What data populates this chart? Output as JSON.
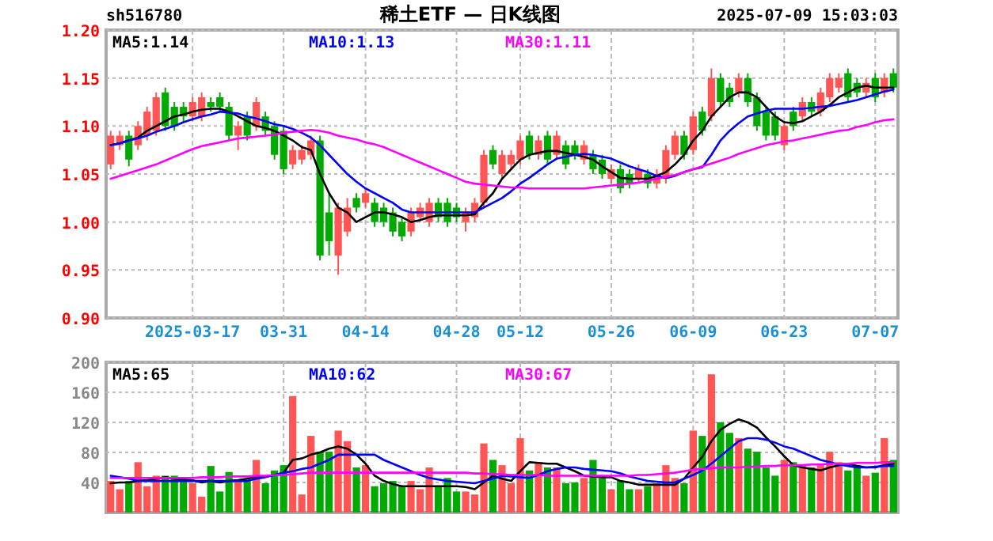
{
  "chart_data": [
    {
      "type": "candlestick",
      "title": "稀土ETF — 日K线图",
      "annotations": [
        "sh516780",
        "2025-07-09 15:03:03"
      ],
      "categories": [
        null,
        null,
        null,
        null,
        null,
        null,
        null,
        null,
        null,
        "2025-03-17",
        null,
        null,
        null,
        null,
        null,
        null,
        null,
        null,
        null,
        "03-31",
        null,
        null,
        null,
        null,
        null,
        null,
        null,
        null,
        "04-14",
        null,
        null,
        null,
        null,
        null,
        null,
        null,
        null,
        null,
        "04-28",
        null,
        null,
        null,
        null,
        null,
        null,
        "05-12",
        null,
        null,
        null,
        null,
        null,
        null,
        null,
        null,
        null,
        "05-26",
        null,
        null,
        null,
        null,
        null,
        null,
        null,
        null,
        "06-09",
        null,
        null,
        null,
        null,
        null,
        null,
        null,
        null,
        null,
        "06-23",
        null,
        null,
        null,
        null,
        null,
        null,
        null,
        null,
        null,
        "07-07",
        null,
        null
      ],
      "ohlc": [
        [
          1.06,
          1.095,
          1.055,
          1.09
        ],
        [
          1.08,
          1.095,
          1.075,
          1.09
        ],
        [
          1.09,
          1.095,
          1.058,
          1.065
        ],
        [
          1.08,
          1.105,
          1.075,
          1.1
        ],
        [
          1.09,
          1.12,
          1.085,
          1.115
        ],
        [
          1.095,
          1.135,
          1.09,
          1.13
        ],
        [
          1.135,
          1.14,
          1.095,
          1.1
        ],
        [
          1.12,
          1.125,
          1.095,
          1.1
        ],
        [
          1.12,
          1.125,
          1.105,
          1.11
        ],
        [
          1.11,
          1.13,
          1.105,
          1.125
        ],
        [
          1.11,
          1.135,
          1.105,
          1.13
        ],
        [
          1.125,
          1.13,
          1.115,
          1.12
        ],
        [
          1.13,
          1.135,
          1.115,
          1.12
        ],
        [
          1.12,
          1.125,
          1.085,
          1.09
        ],
        [
          1.09,
          1.105,
          1.075,
          1.1
        ],
        [
          1.11,
          1.115,
          1.085,
          1.09
        ],
        [
          1.1,
          1.13,
          1.095,
          1.125
        ],
        [
          1.11,
          1.115,
          1.09,
          1.095
        ],
        [
          1.1,
          1.105,
          1.065,
          1.07
        ],
        [
          1.095,
          1.1,
          1.05,
          1.055
        ],
        [
          1.06,
          1.08,
          1.055,
          1.075
        ],
        [
          1.065,
          1.08,
          1.06,
          1.075
        ],
        [
          1.07,
          1.09,
          1.065,
          1.085
        ],
        [
          1.085,
          1.09,
          0.96,
          0.965
        ],
        [
          1.01,
          1.03,
          0.965,
          0.98
        ],
        [
          0.965,
          1.02,
          0.945,
          1.015
        ],
        [
          0.99,
          1.025,
          0.985,
          1.015
        ],
        [
          1.025,
          1.03,
          1.01,
          1.015
        ],
        [
          1.02,
          1.035,
          1.015,
          1.03
        ],
        [
          1.02,
          1.025,
          0.995,
          1.0
        ],
        [
          1.015,
          1.02,
          0.995,
          1.0
        ],
        [
          1.01,
          1.015,
          0.985,
          0.99
        ],
        [
          1.0,
          1.005,
          0.98,
          0.985
        ],
        [
          0.99,
          1.015,
          0.985,
          1.01
        ],
        [
          1.005,
          1.02,
          1.0,
          1.015
        ],
        [
          1.0,
          1.025,
          0.995,
          1.02
        ],
        [
          1.02,
          1.025,
          1.0,
          1.005
        ],
        [
          1.02,
          1.025,
          0.995,
          1.0
        ],
        [
          1.015,
          1.02,
          1.0,
          1.005
        ],
        [
          1.0,
          1.015,
          0.99,
          1.01
        ],
        [
          1.005,
          1.025,
          1.0,
          1.02
        ],
        [
          1.02,
          1.075,
          1.015,
          1.07
        ],
        [
          1.075,
          1.08,
          1.055,
          1.06
        ],
        [
          1.05,
          1.075,
          1.045,
          1.07
        ],
        [
          1.06,
          1.075,
          1.055,
          1.07
        ],
        [
          1.065,
          1.09,
          1.06,
          1.085
        ],
        [
          1.09,
          1.095,
          1.065,
          1.07
        ],
        [
          1.07,
          1.09,
          1.065,
          1.085
        ],
        [
          1.09,
          1.095,
          1.06,
          1.065
        ],
        [
          1.07,
          1.095,
          1.065,
          1.09
        ],
        [
          1.08,
          1.085,
          1.055,
          1.06
        ],
        [
          1.08,
          1.085,
          1.065,
          1.07
        ],
        [
          1.065,
          1.085,
          1.06,
          1.08
        ],
        [
          1.07,
          1.075,
          1.05,
          1.055
        ],
        [
          1.065,
          1.07,
          1.045,
          1.05
        ],
        [
          1.045,
          1.06,
          1.04,
          1.055
        ],
        [
          1.055,
          1.06,
          1.03,
          1.035
        ],
        [
          1.05,
          1.055,
          1.035,
          1.04
        ],
        [
          1.045,
          1.06,
          1.04,
          1.055
        ],
        [
          1.05,
          1.055,
          1.035,
          1.04
        ],
        [
          1.04,
          1.055,
          1.035,
          1.05
        ],
        [
          1.045,
          1.08,
          1.04,
          1.075
        ],
        [
          1.07,
          1.095,
          1.065,
          1.09
        ],
        [
          1.09,
          1.095,
          1.065,
          1.07
        ],
        [
          1.075,
          1.115,
          1.07,
          1.11
        ],
        [
          1.115,
          1.12,
          1.09,
          1.095
        ],
        [
          1.11,
          1.16,
          1.105,
          1.15
        ],
        [
          1.15,
          1.155,
          1.12,
          1.125
        ],
        [
          1.14,
          1.145,
          1.12,
          1.125
        ],
        [
          1.135,
          1.155,
          1.13,
          1.15
        ],
        [
          1.15,
          1.155,
          1.12,
          1.125
        ],
        [
          1.13,
          1.135,
          1.095,
          1.1
        ],
        [
          1.115,
          1.12,
          1.085,
          1.09
        ],
        [
          1.11,
          1.115,
          1.085,
          1.09
        ],
        [
          1.08,
          1.105,
          1.075,
          1.1
        ],
        [
          1.115,
          1.12,
          1.095,
          1.1
        ],
        [
          1.11,
          1.13,
          1.105,
          1.125
        ],
        [
          1.125,
          1.13,
          1.11,
          1.115
        ],
        [
          1.115,
          1.14,
          1.11,
          1.135
        ],
        [
          1.13,
          1.155,
          1.125,
          1.15
        ],
        [
          1.14,
          1.155,
          1.135,
          1.15
        ],
        [
          1.155,
          1.16,
          1.125,
          1.13
        ],
        [
          1.145,
          1.15,
          1.13,
          1.135
        ],
        [
          1.135,
          1.15,
          1.13,
          1.145
        ],
        [
          1.15,
          1.155,
          1.125,
          1.13
        ],
        [
          1.135,
          1.155,
          1.13,
          1.15
        ],
        [
          1.155,
          1.16,
          1.135,
          1.14
        ]
      ],
      "colors": [
        "#ff5555",
        "#ff5555",
        "#00aa00",
        "#ff5555",
        "#ff5555",
        "#ff5555",
        "#00aa00",
        "#00aa00",
        "#00aa00",
        "#ff5555",
        "#ff5555",
        "#00aa00",
        "#00aa00",
        "#00aa00",
        "#ff5555",
        "#00aa00",
        "#ff5555",
        "#00aa00",
        "#00aa00",
        "#00aa00",
        "#ff5555",
        "#ff5555",
        "#ff5555",
        "#00aa00",
        "#00aa00",
        "#ff5555",
        "#ff5555",
        "#00aa00",
        "#ff5555",
        "#00aa00",
        "#00aa00",
        "#00aa00",
        "#00aa00",
        "#ff5555",
        "#ff5555",
        "#ff5555",
        "#00aa00",
        "#00aa00",
        "#00aa00",
        "#ff5555",
        "#ff5555",
        "#ff5555",
        "#00aa00",
        "#ff5555",
        "#ff5555",
        "#ff5555",
        "#00aa00",
        "#ff5555",
        "#00aa00",
        "#ff5555",
        "#00aa00",
        "#00aa00",
        "#ff5555",
        "#00aa00",
        "#00aa00",
        "#ff5555",
        "#00aa00",
        "#00aa00",
        "#ff5555",
        "#00aa00",
        "#ff5555",
        "#ff5555",
        "#ff5555",
        "#00aa00",
        "#ff5555",
        "#00aa00",
        "#ff5555",
        "#00aa00",
        "#00aa00",
        "#ff5555",
        "#00aa00",
        "#00aa00",
        "#00aa00",
        "#00aa00",
        "#ff5555",
        "#00aa00",
        "#ff5555",
        "#00aa00",
        "#ff5555",
        "#ff5555",
        "#ff5555",
        "#00aa00",
        "#00aa00",
        "#ff5555",
        "#00aa00",
        "#ff5555",
        "#00aa00"
      ],
      "series": [
        {
          "name": "MA5:1.14",
          "type": "line",
          "color": "#000000",
          "values": [
            1.08,
            1.082,
            1.085,
            1.088,
            1.095,
            1.1,
            1.105,
            1.11,
            1.112,
            1.115,
            1.117,
            1.118,
            1.118,
            1.115,
            1.11,
            1.105,
            1.1,
            1.098,
            1.095,
            1.09,
            1.085,
            1.078,
            1.075,
            1.05,
            1.03,
            1.015,
            1.01,
            1.0,
            1.005,
            1.01,
            1.01,
            1.008,
            1.005,
            1.0,
            1.002,
            1.005,
            1.007,
            1.007,
            1.007,
            1.007,
            1.008,
            1.02,
            1.03,
            1.045,
            1.055,
            1.065,
            1.07,
            1.072,
            1.074,
            1.074,
            1.072,
            1.07,
            1.068,
            1.065,
            1.058,
            1.052,
            1.046,
            1.045,
            1.045,
            1.045,
            1.048,
            1.052,
            1.06,
            1.07,
            1.085,
            1.095,
            1.11,
            1.12,
            1.13,
            1.135,
            1.135,
            1.13,
            1.12,
            1.11,
            1.104,
            1.103,
            1.105,
            1.11,
            1.115,
            1.122,
            1.13,
            1.135,
            1.14,
            1.142,
            1.14,
            1.14,
            1.14
          ]
        },
        {
          "name": "MA10:1.13",
          "type": "line",
          "color": "#0000ff",
          "values": [
            1.08,
            1.082,
            1.085,
            1.087,
            1.09,
            1.094,
            1.097,
            1.1,
            1.104,
            1.107,
            1.11,
            1.112,
            1.115,
            1.114,
            1.113,
            1.11,
            1.108,
            1.105,
            1.102,
            1.1,
            1.097,
            1.093,
            1.088,
            1.08,
            1.07,
            1.06,
            1.05,
            1.042,
            1.035,
            1.03,
            1.025,
            1.02,
            1.013,
            1.01,
            1.01,
            1.01,
            1.01,
            1.01,
            1.01,
            1.01,
            1.01,
            1.015,
            1.02,
            1.025,
            1.032,
            1.04,
            1.046,
            1.053,
            1.06,
            1.066,
            1.068,
            1.07,
            1.071,
            1.07,
            1.068,
            1.066,
            1.062,
            1.058,
            1.055,
            1.052,
            1.048,
            1.046,
            1.048,
            1.052,
            1.055,
            1.057,
            1.07,
            1.085,
            1.095,
            1.103,
            1.11,
            1.113,
            1.116,
            1.118,
            1.118,
            1.118,
            1.118,
            1.119,
            1.12,
            1.121,
            1.123,
            1.125,
            1.127,
            1.13,
            1.133,
            1.136,
            1.138
          ]
        },
        {
          "name": "MA30:1.11",
          "type": "line",
          "color": "#ff00ff",
          "values": [
            1.045,
            1.048,
            1.051,
            1.054,
            1.057,
            1.06,
            1.064,
            1.068,
            1.072,
            1.076,
            1.079,
            1.081,
            1.083,
            1.085,
            1.087,
            1.088,
            1.089,
            1.09,
            1.091,
            1.093,
            1.094,
            1.095,
            1.096,
            1.095,
            1.093,
            1.09,
            1.088,
            1.086,
            1.083,
            1.081,
            1.078,
            1.074,
            1.07,
            1.066,
            1.062,
            1.058,
            1.054,
            1.05,
            1.046,
            1.042,
            1.04,
            1.039,
            1.038,
            1.037,
            1.036,
            1.036,
            1.035,
            1.035,
            1.035,
            1.035,
            1.035,
            1.035,
            1.035,
            1.036,
            1.037,
            1.038,
            1.039,
            1.04,
            1.041,
            1.043,
            1.045,
            1.047,
            1.049,
            1.052,
            1.055,
            1.058,
            1.061,
            1.064,
            1.067,
            1.071,
            1.074,
            1.077,
            1.08,
            1.082,
            1.084,
            1.085,
            1.087,
            1.089,
            1.091,
            1.093,
            1.095,
            1.096,
            1.099,
            1.101,
            1.104,
            1.106,
            1.107
          ]
        }
      ],
      "ylim": [
        0.9,
        1.2
      ],
      "yticks": [
        {
          "value": 0.9,
          "label": "0.90"
        },
        {
          "value": 0.95,
          "label": "0.95"
        },
        {
          "value": 1.0,
          "label": "1.00"
        },
        {
          "value": 1.05,
          "label": "1.05"
        },
        {
          "value": 1.1,
          "label": "1.10"
        },
        {
          "value": 1.15,
          "label": "1.15"
        },
        {
          "value": 1.2,
          "label": "1.20"
        }
      ],
      "grid": true,
      "legend": "top"
    },
    {
      "type": "bar",
      "categories": [
        null,
        null,
        null,
        null,
        null,
        null,
        null,
        null,
        null,
        null,
        null,
        null,
        null,
        null,
        null,
        null,
        null,
        null,
        null,
        null,
        null,
        null,
        null,
        null,
        null,
        null,
        null,
        null,
        null,
        null,
        null,
        null,
        null,
        null,
        null,
        null,
        null,
        null,
        null,
        null,
        null,
        null,
        null,
        null,
        null,
        null,
        null,
        null,
        null,
        null,
        null,
        null,
        null,
        null,
        null,
        null,
        null,
        null,
        null,
        null,
        null,
        null,
        null,
        null,
        null,
        null,
        null,
        null,
        null,
        null,
        null,
        null,
        null,
        null,
        null,
        null,
        null,
        null,
        null,
        null,
        null,
        null,
        null,
        null,
        null,
        null,
        null
      ],
      "series": [
        {
          "type": "bar",
          "values": [
            42,
            31,
            42,
            67,
            35,
            49,
            49,
            49,
            44,
            39,
            21,
            62,
            28,
            54,
            42,
            42,
            70,
            39,
            56,
            63,
            155,
            24,
            102,
            81,
            81,
            109,
            95,
            60,
            63,
            35,
            39,
            42,
            35,
            42,
            31,
            60,
            35,
            46,
            28,
            28,
            24,
            92,
            70,
            63,
            39,
            99,
            56,
            67,
            60,
            60,
            39,
            40,
            46,
            70,
            46,
            31,
            42,
            31,
            31,
            35,
            39,
            63,
            46,
            39,
            109,
            102,
            184,
            120,
            106,
            99,
            85,
            81,
            60,
            49,
            70,
            67,
            63,
            60,
            63,
            81,
            67,
            56,
            63,
            49,
            53,
            99,
            70
          ],
          "colors": [
            "#ff5555",
            "#ff5555",
            "#00aa00",
            "#ff5555",
            "#ff5555",
            "#ff5555",
            "#00aa00",
            "#00aa00",
            "#00aa00",
            "#ff5555",
            "#ff5555",
            "#00aa00",
            "#00aa00",
            "#00aa00",
            "#ff5555",
            "#00aa00",
            "#ff5555",
            "#00aa00",
            "#00aa00",
            "#00aa00",
            "#ff5555",
            "#ff5555",
            "#ff5555",
            "#00aa00",
            "#00aa00",
            "#ff5555",
            "#ff5555",
            "#00aa00",
            "#ff5555",
            "#00aa00",
            "#00aa00",
            "#00aa00",
            "#00aa00",
            "#ff5555",
            "#ff5555",
            "#ff5555",
            "#00aa00",
            "#00aa00",
            "#00aa00",
            "#ff5555",
            "#ff5555",
            "#ff5555",
            "#00aa00",
            "#ff5555",
            "#ff5555",
            "#ff5555",
            "#00aa00",
            "#ff5555",
            "#00aa00",
            "#ff5555",
            "#00aa00",
            "#00aa00",
            "#ff5555",
            "#00aa00",
            "#00aa00",
            "#ff5555",
            "#00aa00",
            "#00aa00",
            "#ff5555",
            "#00aa00",
            "#ff5555",
            "#ff5555",
            "#ff5555",
            "#00aa00",
            "#ff5555",
            "#00aa00",
            "#ff5555",
            "#00aa00",
            "#00aa00",
            "#ff5555",
            "#00aa00",
            "#00aa00",
            "#00aa00",
            "#00aa00",
            "#ff5555",
            "#00aa00",
            "#ff5555",
            "#00aa00",
            "#ff5555",
            "#ff5555",
            "#ff5555",
            "#00aa00",
            "#00aa00",
            "#ff5555",
            "#00aa00",
            "#ff5555",
            "#00aa00"
          ]
        },
        {
          "name": "MA5:65",
          "type": "line",
          "color": "#000000",
          "values": [
            39,
            40,
            40,
            42,
            43,
            45,
            47,
            45,
            44,
            43,
            40,
            42,
            40,
            42,
            43,
            45,
            48,
            48,
            50,
            53,
            70,
            72,
            77,
            80,
            85,
            88,
            85,
            77,
            65,
            49,
            42,
            38,
            35,
            35,
            35,
            35,
            35,
            35,
            35,
            34,
            31,
            40,
            49,
            45,
            42,
            55,
            67,
            66,
            65,
            65,
            60,
            55,
            49,
            48,
            47,
            47,
            42,
            40,
            37,
            37,
            37,
            37,
            37,
            45,
            60,
            74,
            95,
            110,
            118,
            124,
            120,
            113,
            100,
            88,
            75,
            63,
            60,
            58,
            56,
            60,
            63,
            65,
            62,
            60,
            60,
            63,
            65
          ]
        },
        {
          "name": "MA10:62",
          "type": "line",
          "color": "#0000ff",
          "values": [
            49,
            47,
            45,
            42,
            42,
            42,
            42,
            42,
            42,
            42,
            42,
            42,
            42,
            42,
            42,
            42,
            45,
            47,
            50,
            53,
            55,
            58,
            60,
            65,
            70,
            77,
            77,
            77,
            77,
            77,
            70,
            65,
            60,
            55,
            50,
            46,
            44,
            42,
            41,
            40,
            39,
            42,
            45,
            49,
            48,
            47,
            46,
            50,
            55,
            58,
            60,
            60,
            58,
            57,
            56,
            55,
            52,
            48,
            45,
            42,
            41,
            40,
            40,
            45,
            50,
            56,
            65,
            75,
            85,
            95,
            99,
            99,
            97,
            93,
            88,
            85,
            80,
            75,
            70,
            67,
            64,
            62,
            60,
            60,
            61,
            62,
            62
          ]
        },
        {
          "name": "MA30:67",
          "type": "line",
          "color": "#ff00ff",
          "values": [
            46,
            46,
            46,
            46,
            46,
            46,
            46,
            46,
            46,
            46,
            47,
            47,
            47,
            48,
            48,
            48,
            49,
            49,
            50,
            50,
            51,
            52,
            53,
            53,
            53,
            53,
            53,
            53,
            53,
            53,
            53,
            53,
            53,
            53,
            53,
            53,
            53,
            53,
            53,
            53,
            52,
            52,
            51,
            51,
            50,
            50,
            50,
            50,
            49,
            49,
            49,
            49,
            49,
            49,
            49,
            49,
            49,
            49,
            50,
            50,
            51,
            52,
            53,
            55,
            57,
            58,
            59,
            60,
            60,
            60,
            61,
            61,
            62,
            62,
            63,
            63,
            63,
            64,
            64,
            65,
            65,
            65,
            66,
            66,
            66,
            67,
            67
          ]
        }
      ],
      "ylim": [
        0,
        200
      ],
      "yticks": [
        40,
        80,
        120,
        160,
        200
      ],
      "grid": true,
      "legend": "top",
      "tick_labels": "y"
    }
  ]
}
